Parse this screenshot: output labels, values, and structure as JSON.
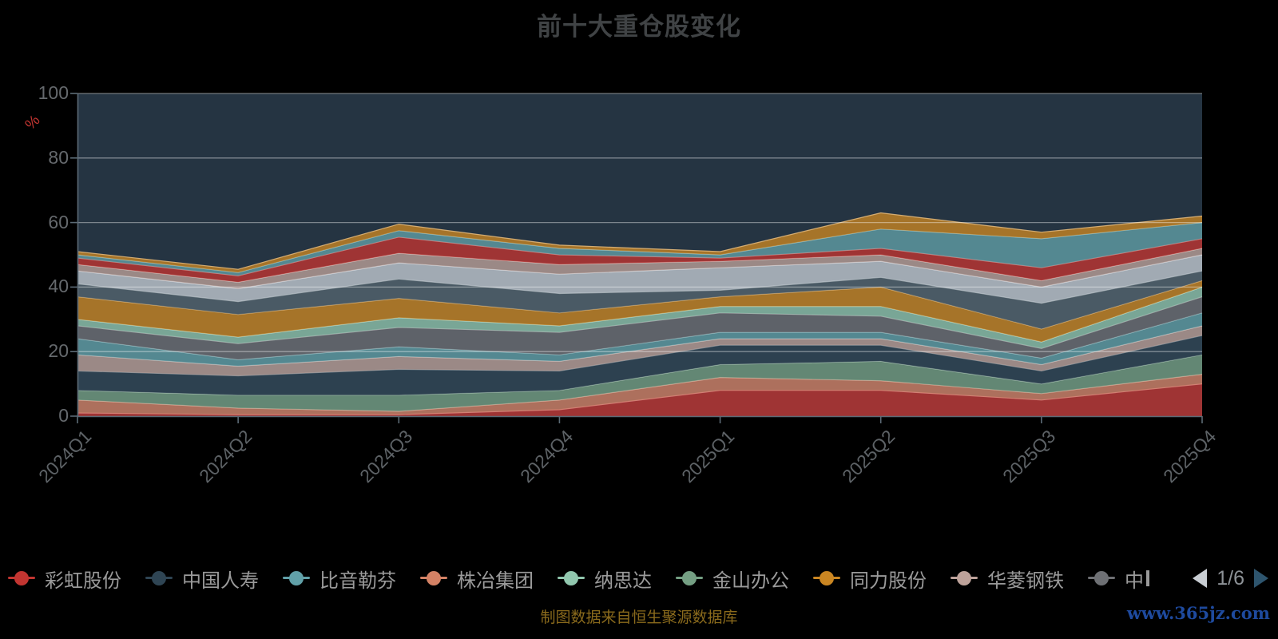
{
  "title": "前十大重仓股变化",
  "y_axis": {
    "unit": "%",
    "ticks": [
      100,
      80,
      60,
      40,
      20,
      0
    ],
    "min": 0,
    "max": 100
  },
  "x_axis": {
    "labels": [
      "2024Q1",
      "2024Q2",
      "2024Q3",
      "2024Q4",
      "2025Q1",
      "2025Q2",
      "2025Q3",
      "2025Q4"
    ]
  },
  "legend": {
    "page_indicator": "1/6",
    "items": [
      {
        "label": "彩虹股份",
        "color": "#c23531"
      },
      {
        "label": "中国人寿",
        "color": "#2f4554"
      },
      {
        "label": "比音勒芬",
        "color": "#61a0a8"
      },
      {
        "label": "株冶集团",
        "color": "#d48265"
      },
      {
        "label": "纳思达",
        "color": "#91c7ae"
      },
      {
        "label": "金山办公",
        "color": "#749f83"
      },
      {
        "label": "同力股份",
        "color": "#ca8622"
      },
      {
        "label": "华菱钢铁",
        "color": "#bda29a"
      },
      {
        "label": "中",
        "color": "#6e7074",
        "truncated": true
      }
    ]
  },
  "footer": {
    "source_note": "制图数据来自恒生聚源数据库",
    "watermark": "www.365jz.com"
  },
  "chart_data": {
    "type": "area",
    "stacked": true,
    "title": "前十大重仓股变化",
    "ylabel": "%",
    "ylim": [
      0,
      100
    ],
    "grid": true,
    "legend_position": "bottom",
    "background": "#253442",
    "gridline_color": "rgba(255,255,255,0.40)",
    "axis_color": "#5c6b76",
    "categories": [
      "2024Q1",
      "2024Q2",
      "2024Q3",
      "2024Q4",
      "2025Q1",
      "2025Q2",
      "2025Q3",
      "2025Q4"
    ],
    "series": [
      {
        "name": "彩虹股份",
        "color": "#c23531",
        "values": [
          1,
          0.5,
          0.5,
          2,
          8,
          8,
          5,
          10
        ]
      },
      {
        "name": "株冶集团",
        "color": "#d48265",
        "values": [
          4,
          2,
          1,
          3,
          4,
          3,
          2,
          3
        ]
      },
      {
        "name": "金山办公",
        "color": "#749f83",
        "values": [
          3,
          4,
          5,
          3,
          4,
          6,
          3,
          6
        ]
      },
      {
        "name": "中国人寿",
        "color": "#2f4554",
        "values": [
          6,
          6,
          8,
          6,
          6,
          5,
          4,
          6
        ]
      },
      {
        "name": "华菱钢铁",
        "color": "#bda29a",
        "values": [
          5,
          3,
          4,
          3,
          2,
          2,
          2,
          3
        ]
      },
      {
        "name": "比音勒芬",
        "color": "#61a0a8",
        "values": [
          5,
          2,
          3,
          2,
          2,
          2,
          2,
          4
        ]
      },
      {
        "name": "中",
        "color": "#6e7074",
        "values": [
          4,
          5,
          6,
          7,
          6,
          5,
          3,
          5
        ]
      },
      {
        "name": "纳思达",
        "color": "#91c7ae",
        "values": [
          2,
          2,
          3,
          2,
          2,
          3,
          2,
          3
        ]
      },
      {
        "name": "同力股份",
        "color": "#ca8622",
        "values": [
          7,
          7,
          6,
          4,
          3,
          6,
          4,
          2
        ]
      },
      {
        "name": "",
        "color": "#546570",
        "values": [
          4,
          4,
          6,
          6,
          2,
          3,
          8,
          3
        ]
      },
      {
        "name": "",
        "color": "#c4ccd3",
        "values": [
          4,
          4,
          5,
          6,
          7,
          5,
          5,
          5
        ]
      },
      {
        "name": "",
        "color": "#bda29a",
        "values": [
          2,
          2,
          3,
          3,
          2,
          2,
          2,
          2
        ]
      },
      {
        "name": "",
        "color": "#c23531",
        "values": [
          2,
          2,
          5,
          3,
          1,
          2,
          4,
          3
        ]
      },
      {
        "name": "",
        "color": "#61a0a8",
        "values": [
          1,
          1,
          2,
          2,
          1,
          6,
          9,
          5
        ]
      },
      {
        "name": "",
        "color": "#ca8622",
        "values": [
          1,
          1,
          2,
          1,
          1,
          5,
          2,
          2
        ]
      }
    ]
  }
}
